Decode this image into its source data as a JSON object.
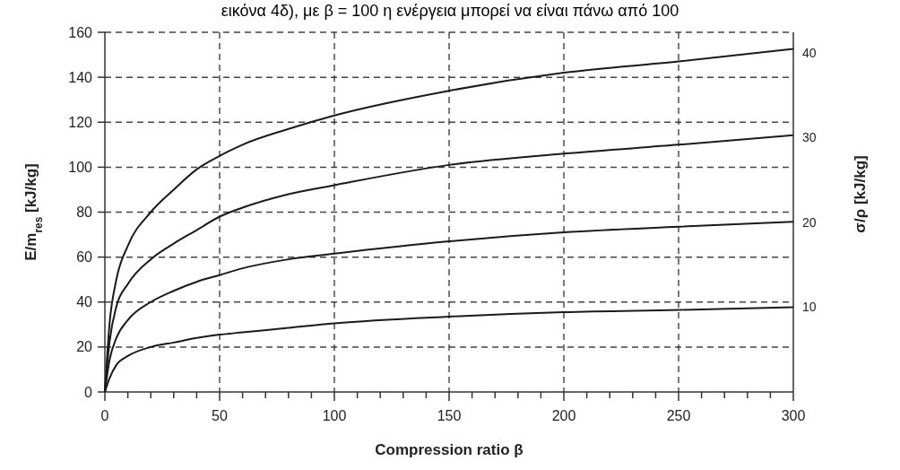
{
  "chart_data": {
    "type": "line",
    "annotations": [
      "εικόνα 4δ), με β = 100 η ενέργεια μπορεί να είναι πάνω από 100"
    ],
    "xlabel": "Compression ratio β",
    "ylabel": "E/m$_{res}$ [kJ/kg]",
    "y2label": "σ/ρ [kJ/kg]",
    "xlim": [
      0,
      300
    ],
    "ylim": [
      0,
      160
    ],
    "y2lim": [
      0,
      42.4
    ],
    "xticks": [
      0,
      {
        "value": 10,
        "label": null
      },
      {
        "value": 20,
        "label": null
      },
      {
        "value": 30,
        "label": null
      },
      {
        "value": 40,
        "label": null
      },
      50,
      {
        "value": 60,
        "label": null
      },
      {
        "value": 70,
        "label": null
      },
      {
        "value": 80,
        "label": null
      },
      {
        "value": 90,
        "label": null
      },
      100,
      {
        "value": 110,
        "label": null
      },
      {
        "value": 120,
        "label": null
      },
      {
        "value": 130,
        "label": null
      },
      {
        "value": 140,
        "label": null
      },
      150,
      {
        "value": 160,
        "label": null
      },
      {
        "value": 170,
        "label": null
      },
      {
        "value": 180,
        "label": null
      },
      {
        "value": 190,
        "label": null
      },
      200,
      {
        "value": 210,
        "label": null
      },
      {
        "value": 220,
        "label": null
      },
      {
        "value": 230,
        "label": null
      },
      {
        "value": 240,
        "label": null
      },
      250,
      {
        "value": 260,
        "label": null
      },
      {
        "value": 270,
        "label": null
      },
      {
        "value": 280,
        "label": null
      },
      {
        "value": 290,
        "label": null
      },
      300
    ],
    "yticks": [
      0,
      20,
      40,
      60,
      80,
      100,
      120,
      140,
      160
    ],
    "y2ticks": [
      10,
      20,
      30,
      40
    ],
    "grid": true,
    "line_style": "solid",
    "marker": "none",
    "x": [
      0,
      2,
      5,
      10,
      20,
      30,
      40,
      50,
      60,
      80,
      100,
      150,
      200,
      250,
      300
    ],
    "series": [
      {
        "color": "#1a1a1a",
        "values": [
          0,
          30,
          50,
          65,
          80,
          90,
          99,
          105,
          110,
          117,
          123,
          134,
          142,
          147,
          152.6
        ]
      },
      {
        "color": "#1a1a1a",
        "values": [
          0,
          22,
          38,
          48,
          59,
          66,
          72,
          78,
          82,
          88,
          92,
          101,
          106,
          110,
          114.2
        ]
      },
      {
        "color": "#1a1a1a",
        "values": [
          0,
          14,
          24,
          32,
          40,
          45,
          49,
          52,
          55,
          59,
          61.5,
          67,
          71,
          73.5,
          75.7
        ]
      },
      {
        "color": "#1a1a1a",
        "values": [
          0,
          6,
          12,
          16,
          20,
          22,
          24,
          25.5,
          26.5,
          28.5,
          30.5,
          33.5,
          35.5,
          36.5,
          37.7
        ]
      }
    ]
  }
}
